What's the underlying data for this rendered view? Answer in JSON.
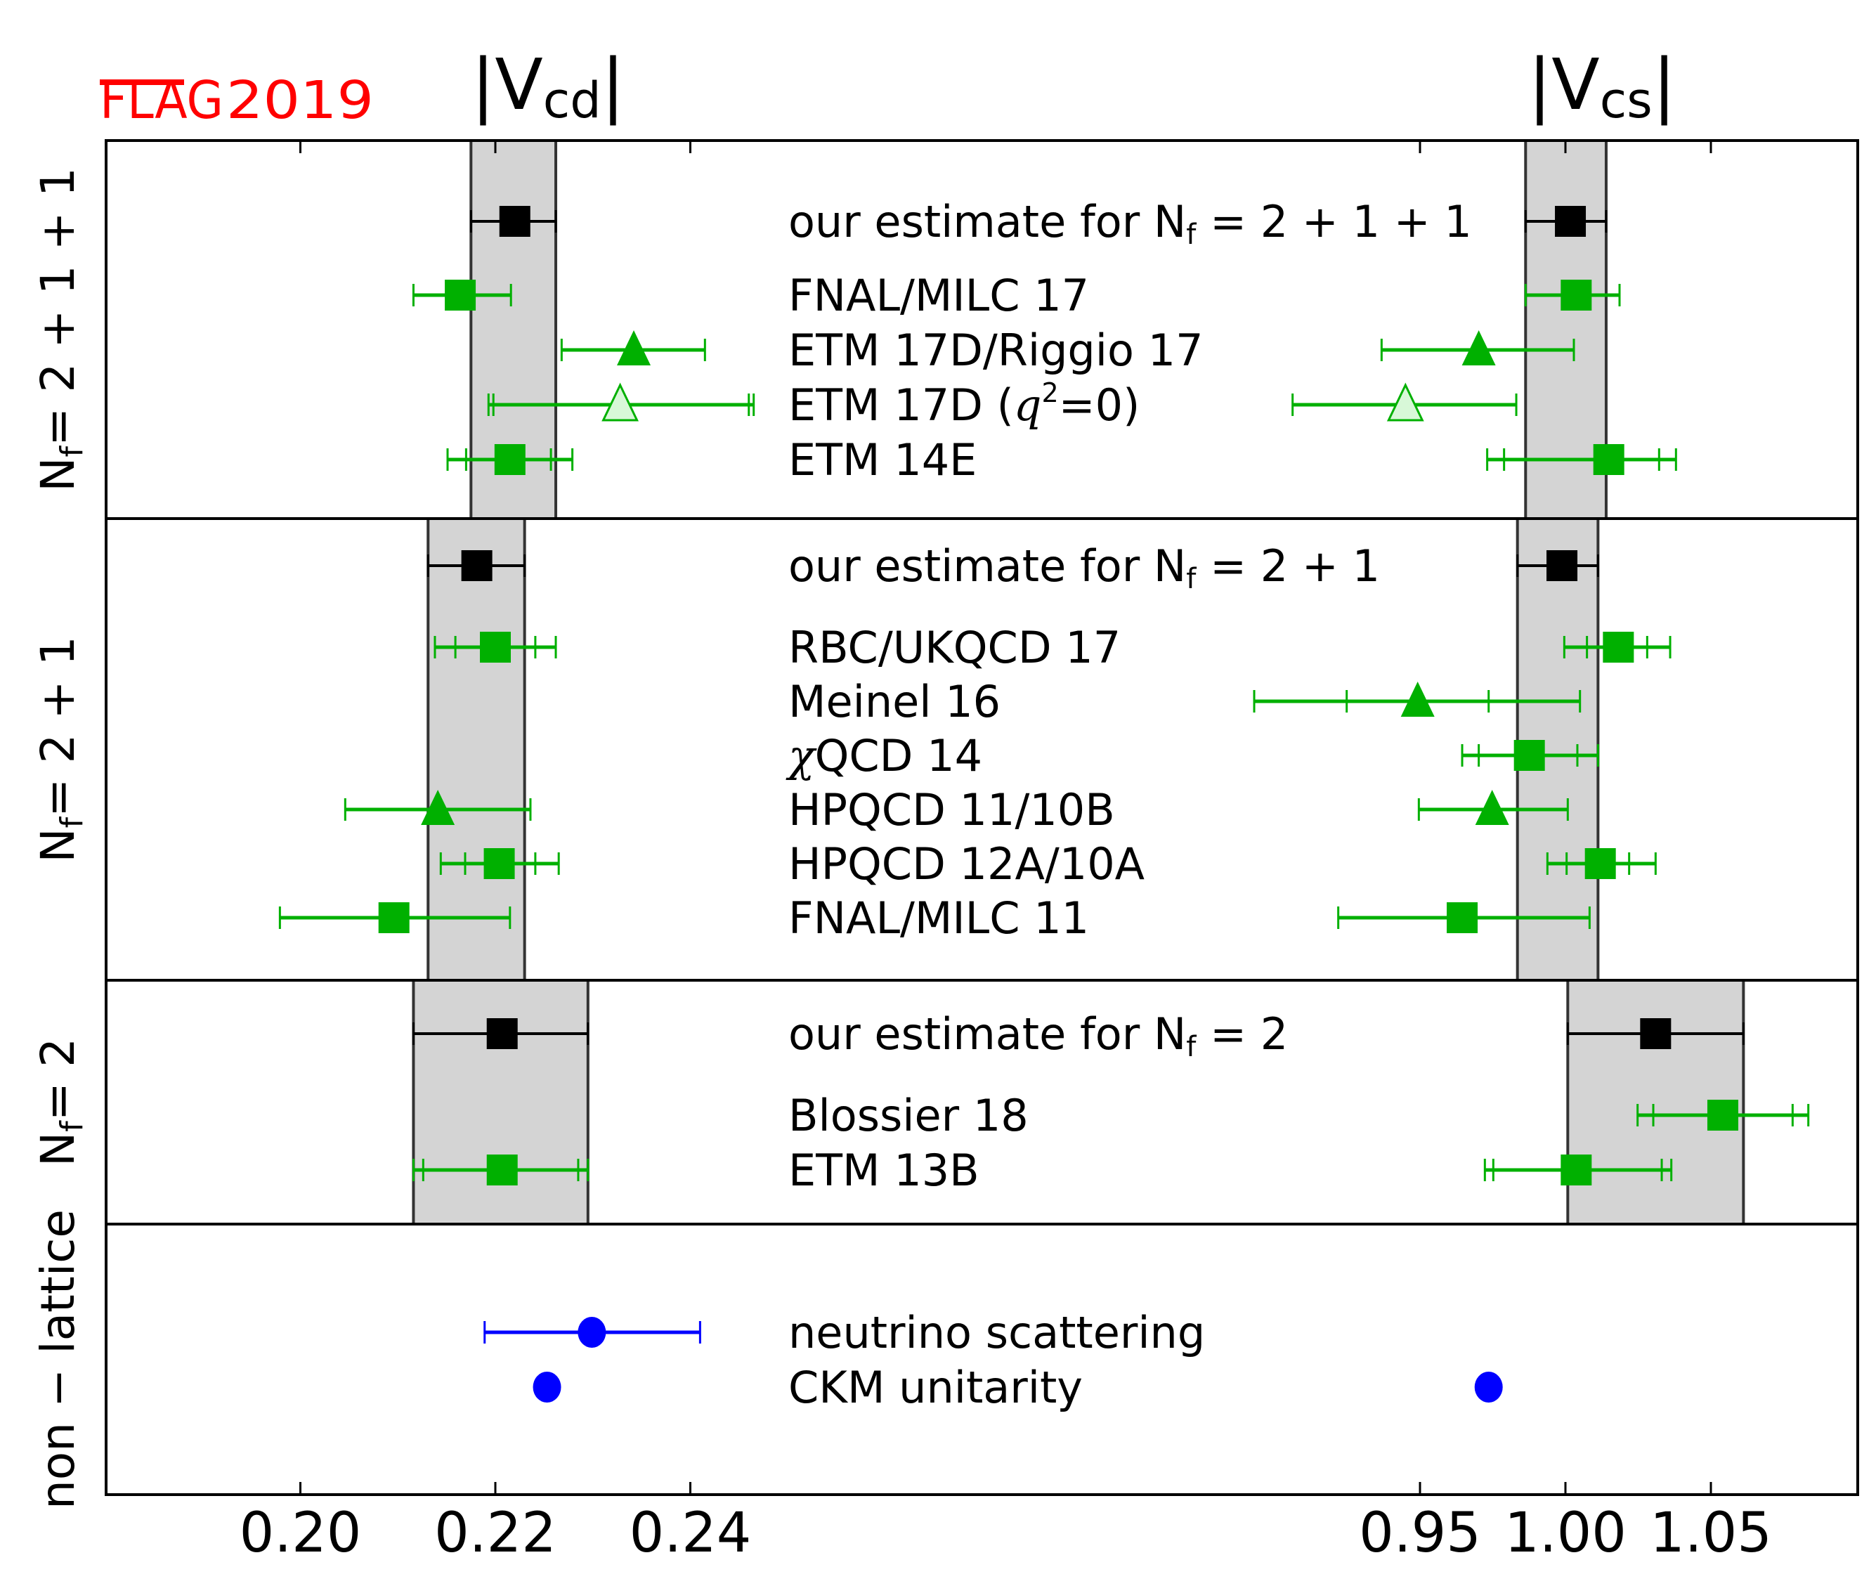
{
  "chart_data": {
    "type": "scatter",
    "subtype": "forest-plot-with-error-bars",
    "watermark": {
      "text_over": "FLAG",
      "text_year": "2019",
      "color": "#ff0000"
    },
    "panels": [
      {
        "title": "|V",
        "title_sub": "cd",
        "title_end": "|",
        "xlim": [
          0.18,
          0.263
        ],
        "ticks": [
          0.2,
          0.22,
          0.24
        ],
        "tick_labels": [
          "0.20",
          "0.22",
          "0.24"
        ]
      },
      {
        "title": "|V",
        "title_sub": "cs",
        "title_end": "|",
        "xlim": [
          0.896,
          1.1
        ],
        "ticks": [
          0.95,
          1.0,
          1.05
        ],
        "tick_labels": [
          "0.95",
          "1.00",
          "1.05"
        ]
      }
    ],
    "groups": [
      {
        "label": "Nf=2+1+1",
        "label_main": "N",
        "label_sub": "f",
        "label_rest": "=2+1+1",
        "band": {
          "vcd": [
            0.2175,
            0.2262
          ],
          "vcs": [
            0.9863,
            1.014
          ]
        },
        "rows": [
          {
            "label": "our estimate for N",
            "label_sub": "f",
            "label_rest": "=2+1+1",
            "marker": "square",
            "color": "#000000",
            "fill": "#000000",
            "vcd": {
              "value": 0.222,
              "err": [
                0.2175,
                0.2262
              ]
            },
            "vcs": {
              "value": 1.0017,
              "err": [
                0.9863,
                1.014
              ]
            }
          },
          {
            "label": "FNAL/MILC 17",
            "marker": "square",
            "color": "#00b000",
            "fill": "#00b000",
            "vcd": {
              "value": 0.2164,
              "err": [
                0.2116,
                0.2216
              ]
            },
            "vcs": {
              "value": 1.0037,
              "err": [
                0.9863,
                1.0186
              ]
            }
          },
          {
            "label": "ETM 17D/Riggio 17",
            "marker": "triangle",
            "color": "#00b000",
            "fill": "#00b000",
            "vcd": {
              "value": 0.2342,
              "err": [
                0.2268,
                0.2415
              ]
            },
            "vcs": {
              "value": 0.9702,
              "err": [
                0.9368,
                1.0029
              ]
            }
          },
          {
            "label": "ETM 17D (",
            "label_italic": "q",
            "label_sup": "2",
            "label_rest": "=0)",
            "marker": "triangle-open",
            "color": "#00b000",
            "fill": "#d8f8d8",
            "vcd": {
              "value": 0.2328,
              "err": [
                0.2193,
                0.2465
              ],
              "err_inner": [
                0.2198,
                0.246
              ]
            },
            "vcs": {
              "value": 0.945,
              "err": [
                0.9062,
                0.9831
              ]
            }
          },
          {
            "label": "ETM 14E",
            "marker": "square",
            "color": "#00b000",
            "fill": "#00b000",
            "vcd": {
              "value": 0.2215,
              "err": [
                0.2151,
                0.2279
              ],
              "err_inner": [
                0.217,
                0.2257
              ]
            },
            "vcs": {
              "value": 1.0149,
              "err": [
                0.9731,
                1.038
              ],
              "err_inner": [
                0.9789,
                1.0322
              ]
            }
          }
        ]
      },
      {
        "label": "Nf=2+1",
        "label_main": "N",
        "label_sub": "f",
        "label_rest": "=2+1",
        "band": {
          "vcd": [
            0.2131,
            0.223
          ],
          "vcs": [
            0.9835,
            1.0112
          ]
        },
        "rows": [
          {
            "label": "our estimate for N",
            "label_sub": "f",
            "label_rest": "=2+1",
            "marker": "square",
            "color": "#000000",
            "fill": "#000000",
            "vcd": {
              "value": 0.2181,
              "err": [
                0.2131,
                0.223
              ]
            },
            "vcs": {
              "value": 0.9988,
              "err": [
                0.9835,
                1.0112
              ]
            }
          },
          {
            "label": "RBC/UKQCD 17",
            "marker": "square",
            "color": "#00b000",
            "fill": "#00b000",
            "vcd": {
              "value": 0.22,
              "err": [
                0.2138,
                0.2262
              ],
              "err_inner": [
                0.2159,
                0.2241
              ]
            },
            "vcs": {
              "value": 1.0182,
              "err": [
                0.9996,
                1.036
              ],
              "err_inner": [
                1.0074,
                1.0281
              ]
            }
          },
          {
            "label": "Meinel 16",
            "marker": "triangle",
            "color": "#00b000",
            "fill": "#00b000",
            "vcd": null,
            "vcs": {
              "value": 0.9492,
              "err": [
                0.893,
                1.005
              ],
              "err_inner": [
                0.9248,
                0.9736
              ]
            }
          },
          {
            "label": "χ",
            "label_rest": "QCD 14",
            "label_first_italic": true,
            "marker": "square",
            "color": "#00b000",
            "fill": "#00b000",
            "vcd": null,
            "vcs": {
              "value": 0.9876,
              "err": [
                0.9645,
                1.0112
              ],
              "err_inner": [
                0.9702,
                1.0041
              ]
            }
          },
          {
            "label": "HPQCD 11/10B",
            "marker": "triangle",
            "color": "#00b000",
            "fill": "#00b000",
            "vcd": {
              "value": 0.2141,
              "err": [
                0.2046,
                0.2236
              ]
            },
            "vcs": {
              "value": 0.9748,
              "err": [
                0.9496,
                1.0008
              ]
            }
          },
          {
            "label": "HPQCD 12A/10A",
            "marker": "square",
            "color": "#00b000",
            "fill": "#00b000",
            "vcd": {
              "value": 0.2204,
              "err": [
                0.2144,
                0.2265
              ],
              "err_inner": [
                0.2169,
                0.2241
              ]
            },
            "vcs": {
              "value": 1.012,
              "err": [
                0.9938,
                1.031
              ],
              "err_inner": [
                1.0004,
                1.0219
              ]
            }
          },
          {
            "label": "FNAL/MILC 11",
            "marker": "square",
            "color": "#00b000",
            "fill": "#00b000",
            "vcd": {
              "value": 0.2096,
              "err": [
                0.1979,
                0.2215
              ]
            },
            "vcs": {
              "value": 0.9645,
              "err": [
                0.9219,
                1.0083
              ]
            }
          }
        ]
      },
      {
        "label": "Nf=2",
        "label_main": "N",
        "label_sub": "f",
        "label_rest": "=2",
        "band": {
          "vcd": [
            0.2116,
            0.2295
          ],
          "vcs": [
            1.0008,
            1.0612
          ]
        },
        "rows": [
          {
            "label": "our estimate for N",
            "label_sub": "f",
            "label_rest": "=2",
            "marker": "square",
            "color": "#000000",
            "fill": "#000000",
            "vcd": {
              "value": 0.2207,
              "err": [
                0.2116,
                0.2295
              ]
            },
            "vcs": {
              "value": 1.031,
              "err": [
                1.0008,
                1.0612
              ]
            }
          },
          {
            "label": "Blossier 18",
            "marker": "square",
            "color": "#00b000",
            "fill": "#00b000",
            "vcd": null,
            "vcs": {
              "value": 1.0541,
              "err": [
                1.0248,
                1.0835
              ],
              "err_inner": [
                1.0302,
                1.0781
              ]
            }
          },
          {
            "label": "ETM 13B",
            "marker": "square",
            "color": "#00b000",
            "fill": "#00b000",
            "vcd": {
              "value": 0.2207,
              "err": [
                0.2116,
                0.2295
              ],
              "err_inner": [
                0.2126,
                0.2285
              ]
            },
            "vcs": {
              "value": 1.0037,
              "err": [
                0.9723,
                1.0364
              ],
              "err_inner": [
                0.9752,
                1.0331
              ]
            }
          }
        ]
      },
      {
        "label": "non-lattice",
        "label_main": "non − lattice",
        "band": null,
        "rows": [
          {
            "label": "neutrino scattering",
            "marker": "circle",
            "color": "#0000ff",
            "fill": "#0000ff",
            "vcd": {
              "value": 0.2299,
              "err": [
                0.2189,
                0.241
              ]
            },
            "vcs": null
          },
          {
            "label": "CKM unitarity",
            "marker": "circle",
            "color": "#0000ff",
            "fill": "#0000ff",
            "vcd": {
              "value": 0.2253,
              "err": null
            },
            "vcs": {
              "value": 0.9736,
              "err": null
            }
          }
        ]
      }
    ]
  }
}
